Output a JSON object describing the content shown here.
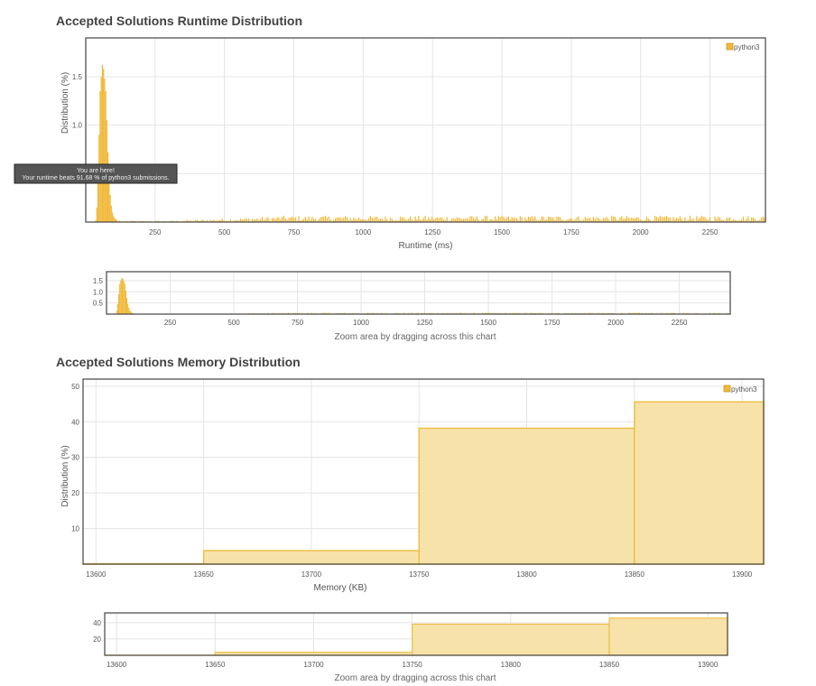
{
  "runtime": {
    "title": "Accepted Solutions Runtime Distribution",
    "zoom_caption": "Zoom area by dragging across this chart",
    "tooltip": {
      "line1": "You are here!",
      "line2": "Your runtime beats 91.68 % of python3 submissions."
    }
  },
  "memory": {
    "title": "Accepted Solutions Memory Distribution",
    "zoom_caption": "Zoom area by dragging across this chart"
  },
  "colors": {
    "bar": "#f0b93a",
    "bar_fill_area": "#f7e2a9",
    "bar_stroke_area": "#efc04a"
  },
  "chart_data": [
    {
      "id": "runtime-main",
      "type": "bar",
      "title": "",
      "xlabel": "Runtime (ms)",
      "ylabel": "Distribution (%)",
      "xlim": [
        0,
        2450
      ],
      "ylim": [
        0,
        1.9
      ],
      "xticks": [
        250,
        500,
        750,
        1000,
        1250,
        1500,
        1750,
        2000,
        2250
      ],
      "yticks": [
        0.5,
        1.0,
        1.5
      ],
      "ytick_labels": [
        "",
        "1.0",
        "1.5"
      ],
      "legend": {
        "position": "top-right",
        "entries": [
          "python3"
        ]
      },
      "series": [
        {
          "name": "python3",
          "peak": [
            [
              36,
              0.02
            ],
            [
              40,
              0.15
            ],
            [
              44,
              0.45
            ],
            [
              48,
              0.9
            ],
            [
              52,
              1.35
            ],
            [
              56,
              1.5
            ],
            [
              60,
              1.62
            ],
            [
              64,
              1.58
            ],
            [
              68,
              1.48
            ],
            [
              72,
              1.35
            ],
            [
              76,
              1.05
            ],
            [
              80,
              0.72
            ],
            [
              84,
              0.45
            ],
            [
              88,
              0.28
            ],
            [
              92,
              0.17
            ],
            [
              96,
              0.1
            ],
            [
              100,
              0.06
            ],
            [
              104,
              0.04
            ],
            [
              108,
              0.03
            ],
            [
              112,
              0.02
            ],
            [
              120,
              0.015
            ],
            [
              130,
              0.01
            ],
            [
              140,
              0.008
            ]
          ],
          "tail": {
            "from": 150,
            "to": 2450,
            "step": 6,
            "base": 0.01,
            "plateau_from": 720,
            "plateau_level": 0.05
          }
        }
      ]
    },
    {
      "id": "runtime-zoom",
      "type": "bar",
      "xlim": [
        0,
        2450
      ],
      "ylim": [
        0,
        1.9
      ],
      "xticks": [
        250,
        500,
        750,
        1000,
        1250,
        1500,
        1750,
        2000,
        2250
      ],
      "yticks": [
        0.5,
        1.0,
        1.5
      ],
      "ytick_labels": [
        "0.5",
        "1.0",
        "1.5"
      ]
    },
    {
      "id": "memory-main",
      "type": "area",
      "title": "",
      "xlabel": "Memory (KB)",
      "ylabel": "Distribution (%)",
      "xlim": [
        13594,
        13910
      ],
      "ylim": [
        0,
        52
      ],
      "xticks": [
        13600,
        13650,
        13700,
        13750,
        13800,
        13850,
        13900
      ],
      "yticks": [
        10,
        20,
        30,
        40,
        50
      ],
      "legend": {
        "position": "top-right",
        "entries": [
          "python3"
        ]
      },
      "series": [
        {
          "name": "python3",
          "bins": [
            {
              "x0": 13594,
              "x1": 13650,
              "y": 0.1
            },
            {
              "x0": 13650,
              "x1": 13750,
              "y": 3.8
            },
            {
              "x0": 13750,
              "x1": 13850,
              "y": 38.2
            },
            {
              "x0": 13850,
              "x1": 13910,
              "y": 45.6
            }
          ]
        }
      ]
    },
    {
      "id": "memory-zoom",
      "type": "area",
      "xlim": [
        13594,
        13910
      ],
      "ylim": [
        0,
        52
      ],
      "xticks": [
        13600,
        13650,
        13700,
        13750,
        13800,
        13850,
        13900
      ],
      "yticks": [
        20,
        40
      ]
    }
  ]
}
